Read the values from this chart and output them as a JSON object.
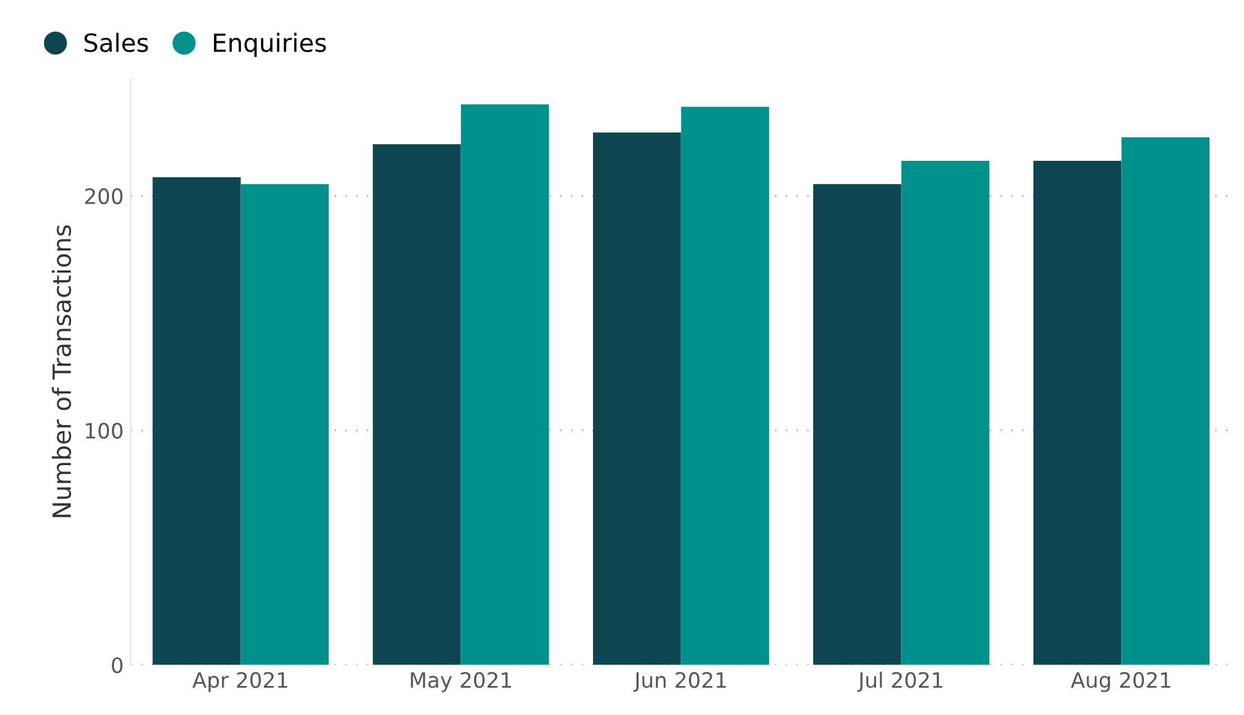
{
  "chart_data": {
    "type": "bar",
    "ylabel": "Number of Transactions",
    "categories": [
      "Apr 2021",
      "May 2021",
      "Jun 2021",
      "Jul 2021",
      "Aug 2021"
    ],
    "series": [
      {
        "name": "Sales",
        "color": "#0d4650",
        "values": [
          208,
          222,
          227,
          205,
          215
        ]
      },
      {
        "name": "Enquiries",
        "color": "#01918d",
        "values": [
          205,
          239,
          238,
          215,
          225
        ]
      }
    ],
    "ylim": [
      0,
      250
    ],
    "yticks": [
      0,
      100,
      200
    ],
    "grid": "y",
    "legend": "top left"
  }
}
